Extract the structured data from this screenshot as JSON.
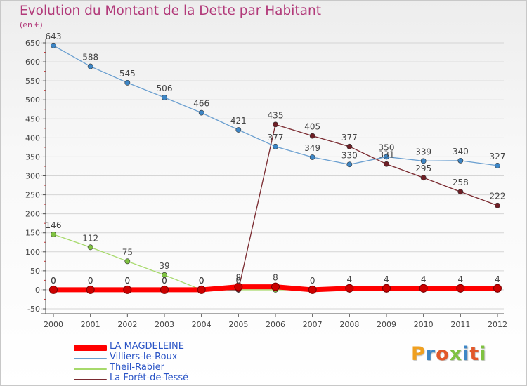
{
  "title": "Evolution du Montant de la Dette par Habitant",
  "unit": "(en €)",
  "logo": "Proxiti",
  "colors": {
    "title": "#b23a7a",
    "axis": "#555555",
    "grid": "#d5d5d5",
    "label": "#444444",
    "legend_text": "#2a54c6"
  },
  "chart_data": {
    "type": "line",
    "title": "Evolution du Montant de la Dette par Habitant",
    "ylabel": "(en €)",
    "xlabel": "",
    "x": [
      "2000",
      "2001",
      "2002",
      "2003",
      "2004",
      "2005",
      "2006",
      "2007",
      "2008",
      "2009",
      "2010",
      "2011",
      "2012"
    ],
    "ylim": [
      -50,
      650
    ],
    "yticks": [
      -50,
      0,
      50,
      100,
      150,
      200,
      250,
      300,
      350,
      400,
      450,
      500,
      550,
      600,
      650
    ],
    "grid": "horizontal",
    "legend_position": "bottom-left",
    "series": [
      {
        "name": "LA MAGDELEINE",
        "color": "#ff0000",
        "style": "thick",
        "values": [
          0,
          0,
          0,
          0,
          0,
          8,
          8,
          0,
          4,
          4,
          4,
          4,
          4
        ],
        "labels": [
          "0",
          "0",
          "0",
          "0",
          "0",
          "8",
          "8",
          "0",
          "4",
          "4",
          "4",
          "4",
          "4"
        ]
      },
      {
        "name": "Villiers-le-Roux",
        "color": "#6a9fd0",
        "point_color": "#3d86c6",
        "values": [
          643,
          588,
          545,
          506,
          466,
          421,
          377,
          349,
          330,
          350,
          339,
          340,
          327
        ],
        "labels": [
          "643",
          "588",
          "545",
          "506",
          "466",
          "421",
          "377",
          "349",
          "330",
          "350",
          "339",
          "340",
          "327"
        ]
      },
      {
        "name": "Theil-Rabier",
        "color": "#a6d96a",
        "point_color": "#7fc241",
        "values": [
          146,
          112,
          75,
          39,
          0,
          0,
          0,
          0,
          0,
          0,
          0,
          0,
          0
        ],
        "labels": [
          "146",
          "112",
          "75",
          "39",
          "0",
          "",
          "",
          "",
          "",
          "",
          "",
          "",
          ""
        ]
      },
      {
        "name": "La Forêt-de-Tessé",
        "color": "#7a2a30",
        "point_color": "#6e1f26",
        "values": [
          0,
          0,
          0,
          0,
          0,
          0,
          435,
          405,
          377,
          331,
          295,
          258,
          222
        ],
        "labels": [
          "0",
          "0",
          "0",
          "0",
          "0",
          "0",
          "435",
          "405",
          "377",
          "331",
          "295",
          "258",
          "222"
        ]
      }
    ]
  }
}
